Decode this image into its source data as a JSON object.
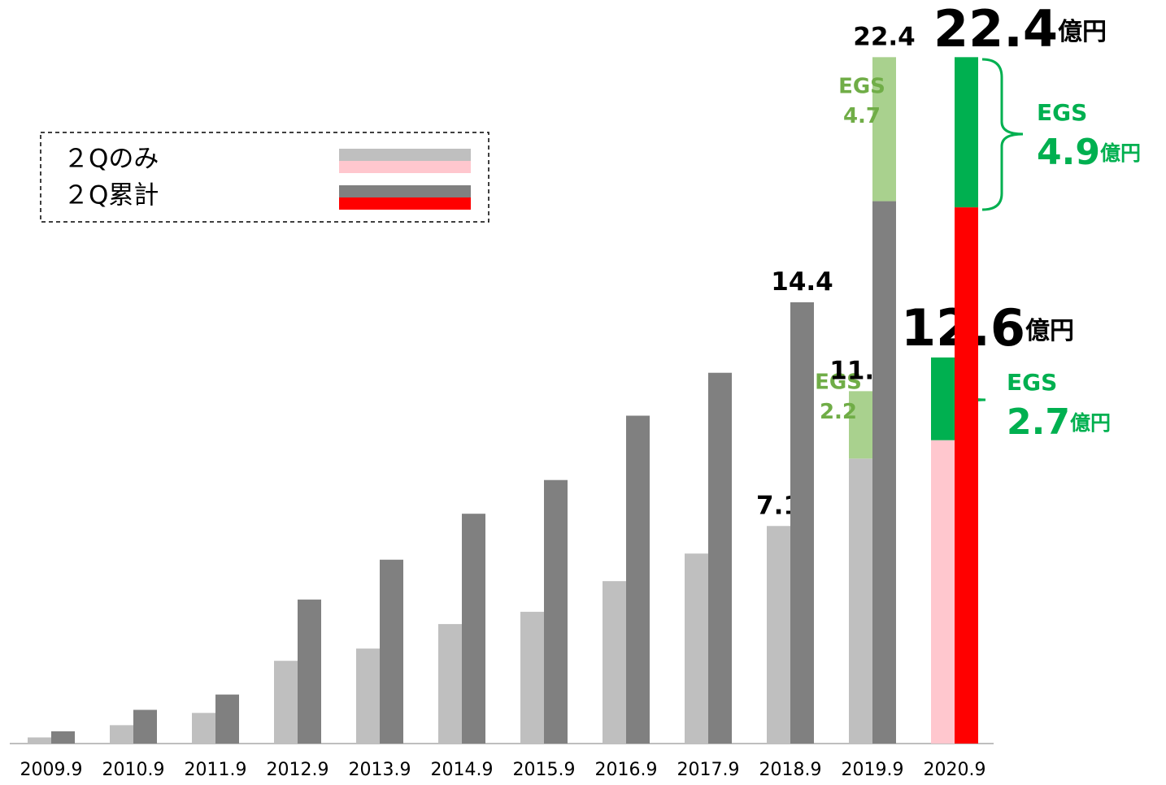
{
  "chart_data": {
    "type": "bar",
    "categories": [
      "2009.9",
      "2010.9",
      "2011.9",
      "2012.9",
      "2013.9",
      "2014.9",
      "2015.9",
      "2016.9",
      "2017.9",
      "2018.9",
      "2019.9",
      "2020.9"
    ],
    "unit": "億円",
    "egs_label": "EGS",
    "egs_colors": [
      null,
      null,
      null,
      null,
      null,
      null,
      null,
      null,
      null,
      null,
      "#a9d18e",
      "#00b050"
    ],
    "egs_text_colors": [
      null,
      null,
      null,
      null,
      null,
      null,
      null,
      null,
      null,
      null,
      "#70ad47",
      "#00b050"
    ],
    "ylim": [
      0,
      24
    ],
    "series": [
      {
        "name": "２Qのみ",
        "color": "#bfbfbf",
        "last_color": "#ffc7ce",
        "values": [
          0.2,
          0.6,
          1.0,
          2.7,
          3.1,
          3.9,
          4.3,
          5.3,
          6.2,
          7.1,
          9.3,
          9.9
        ],
        "egs_values": [
          null,
          null,
          null,
          null,
          null,
          null,
          null,
          null,
          null,
          null,
          2.2,
          2.7
        ],
        "total_labels": [
          null,
          null,
          null,
          null,
          null,
          null,
          null,
          null,
          null,
          7.1,
          11.5,
          12.6
        ]
      },
      {
        "name": "２Q累計",
        "color": "#808080",
        "last_color": "#ff0000",
        "values": [
          0.4,
          1.1,
          1.6,
          4.7,
          6.0,
          7.5,
          8.6,
          10.7,
          12.1,
          14.4,
          17.7,
          17.5
        ],
        "egs_values": [
          null,
          null,
          null,
          null,
          null,
          null,
          null,
          null,
          null,
          null,
          4.7,
          4.9
        ],
        "total_labels": [
          null,
          null,
          null,
          null,
          null,
          null,
          null,
          null,
          null,
          14.4,
          22.4,
          22.4
        ]
      }
    ]
  }
}
